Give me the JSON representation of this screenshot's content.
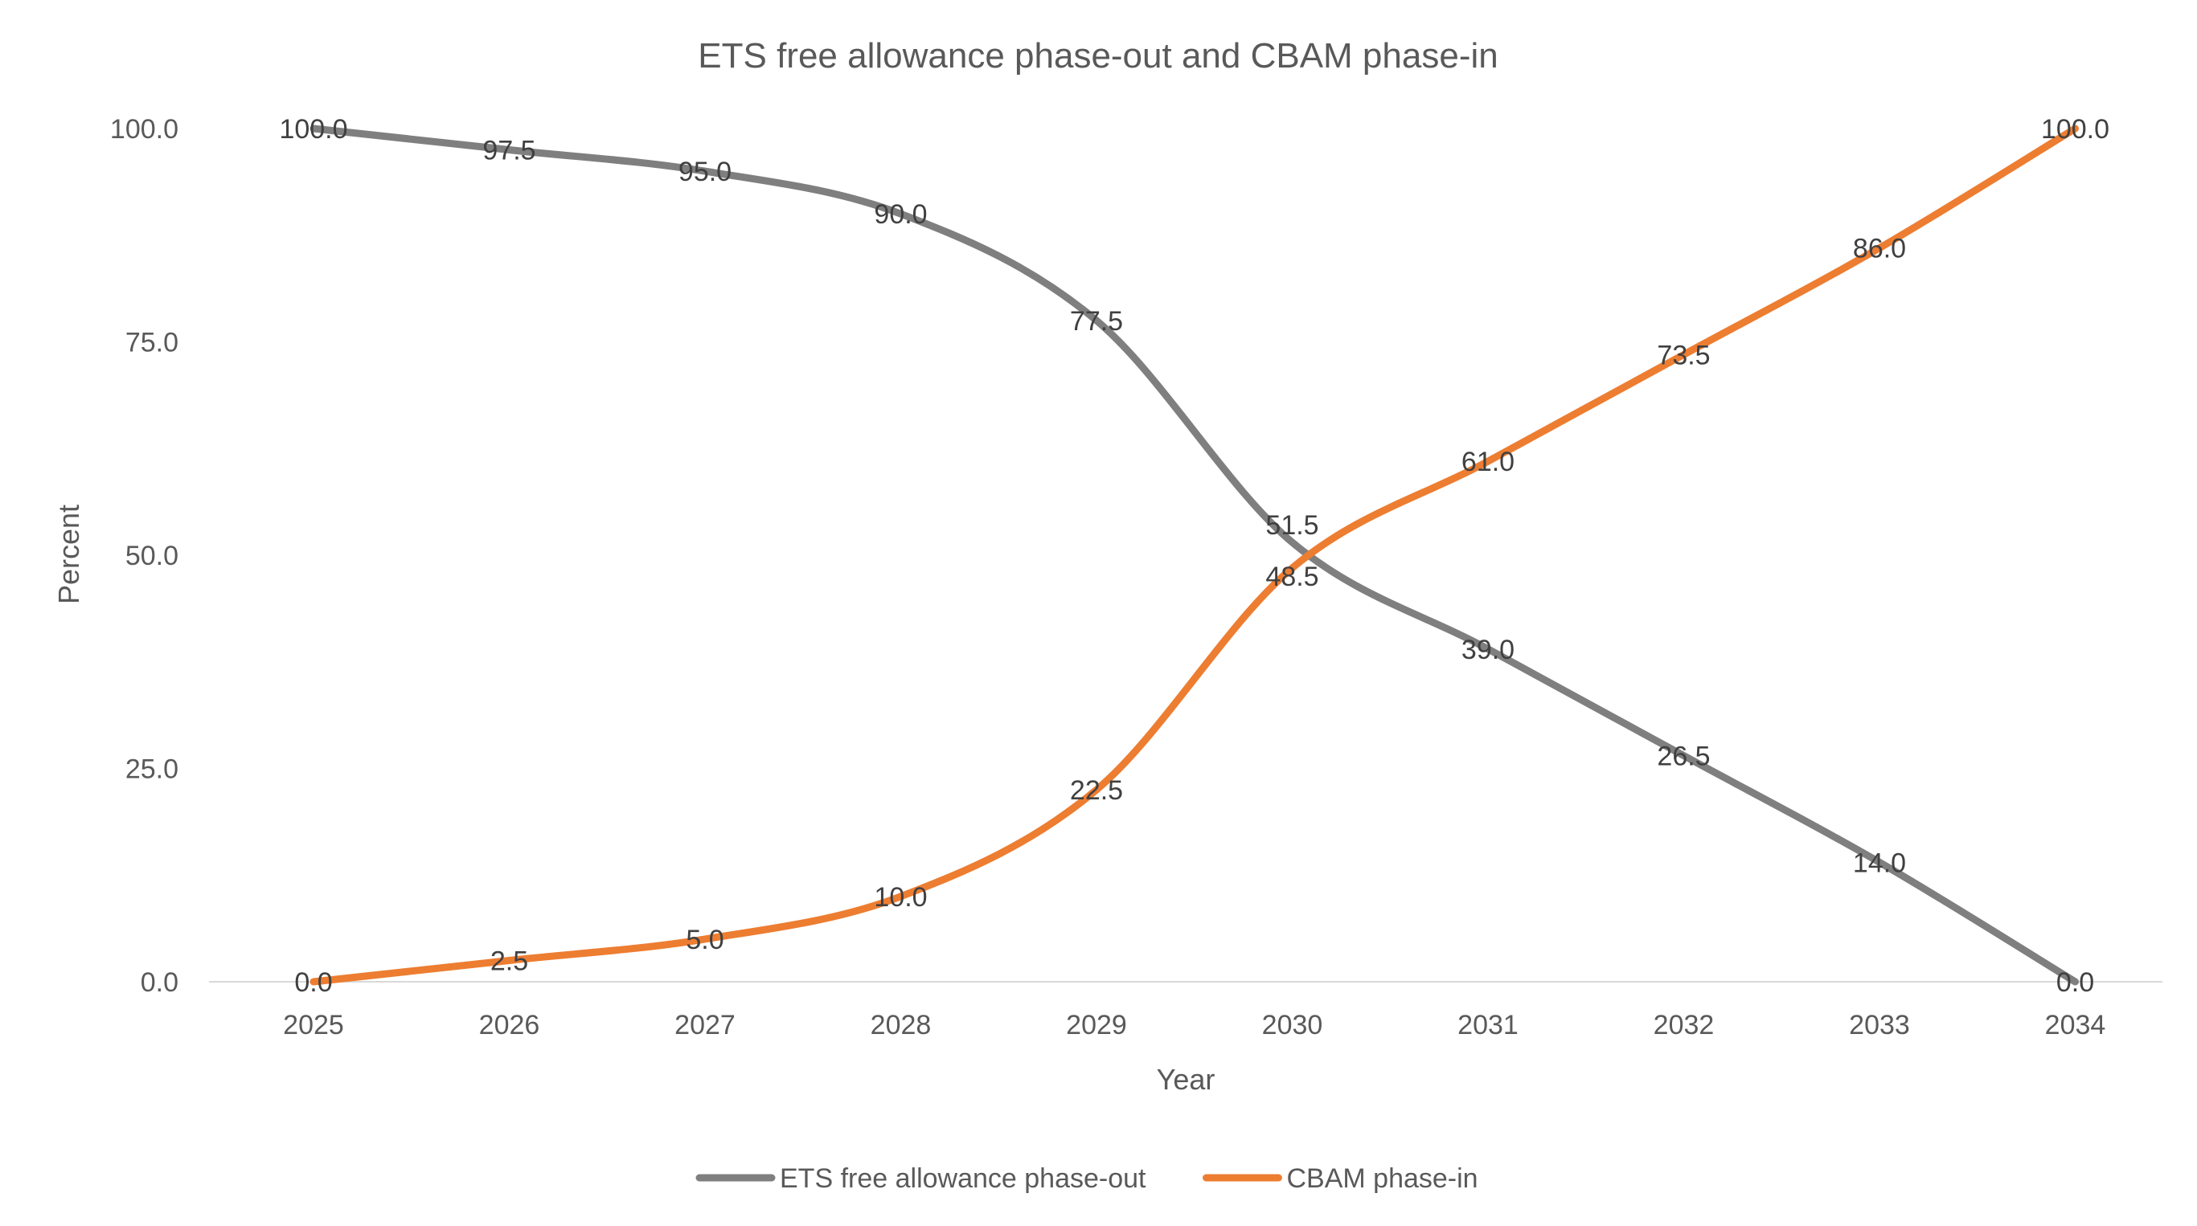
{
  "chart_data": {
    "type": "line",
    "title": "ETS free allowance phase-out and CBAM phase-in",
    "xlabel": "Year",
    "ylabel": "Percent",
    "categories": [
      "2025",
      "2026",
      "2027",
      "2028",
      "2029",
      "2030",
      "2031",
      "2032",
      "2033",
      "2034"
    ],
    "yticks": [
      "0.0",
      "25.0",
      "50.0",
      "75.0",
      "100.0"
    ],
    "ylim": [
      0,
      100
    ],
    "grid": false,
    "legend_position": "bottom",
    "series": [
      {
        "name": "ETS free allowance phase-out",
        "color": "#7f7f7f",
        "values": [
          100.0,
          97.5,
          95.0,
          90.0,
          77.5,
          51.5,
          39.0,
          26.5,
          14.0,
          0.0
        ],
        "labels": [
          "100.0",
          "97.5",
          "95.0",
          "90.0",
          "77.5",
          "51.5",
          "39.0",
          "26.5",
          "14.0",
          "0.0"
        ]
      },
      {
        "name": "CBAM phase-in",
        "color": "#ed7d31",
        "values": [
          0.0,
          2.5,
          5.0,
          10.0,
          22.5,
          48.5,
          61.0,
          73.5,
          86.0,
          100.0
        ],
        "labels": [
          "0.0",
          "2.5",
          "5.0",
          "10.0",
          "22.5",
          "48.5",
          "61.0",
          "73.5",
          "86.0",
          "100.0"
        ]
      }
    ]
  }
}
